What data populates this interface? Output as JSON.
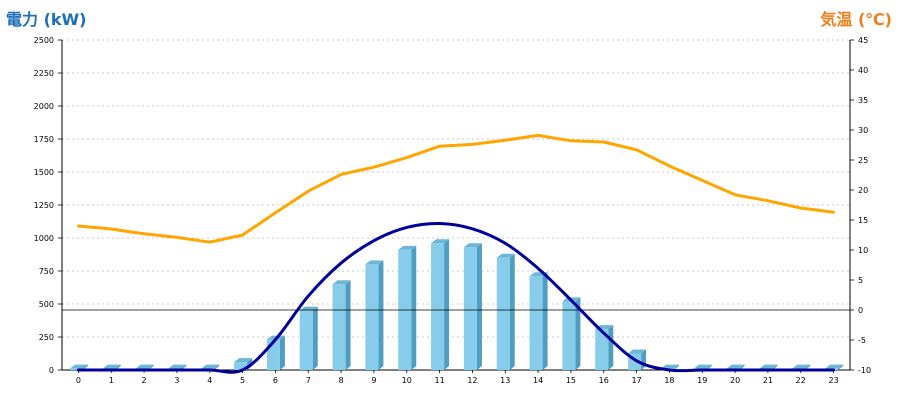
{
  "chart_data": {
    "type": "bar",
    "left_axis_title": "電力 (kW)",
    "right_axis_title": "気温 (℃)",
    "categories": [
      "0",
      "1",
      "2",
      "3",
      "4",
      "5",
      "6",
      "7",
      "8",
      "9",
      "10",
      "11",
      "12",
      "13",
      "14",
      "15",
      "16",
      "17",
      "18",
      "19",
      "20",
      "21",
      "22",
      "23"
    ],
    "left_ticks": [
      "0",
      "250",
      "500",
      "750",
      "1000",
      "1250",
      "1500",
      "1750",
      "2000",
      "2250",
      "2500"
    ],
    "right_ticks": [
      "-10",
      "-5",
      "0",
      "5",
      "10",
      "15",
      "20",
      "25",
      "30",
      "35",
      "40",
      "45"
    ],
    "ylim_left": [
      0,
      2500
    ],
    "ylim_right": [
      -10,
      45
    ],
    "grid": true,
    "series": [
      {
        "kind": "bar",
        "axis": "left",
        "color": "#87cceb",
        "values": [
          10,
          10,
          10,
          10,
          10,
          60,
          230,
          450,
          650,
          800,
          910,
          960,
          930,
          850,
          710,
          520,
          310,
          125,
          10,
          10,
          10,
          10,
          10,
          10
        ]
      },
      {
        "kind": "line",
        "axis": "left",
        "color": "#000099",
        "values": [
          0,
          0,
          0,
          0,
          0,
          0,
          230,
          560,
          810,
          980,
          1080,
          1110,
          1070,
          960,
          770,
          530,
          280,
          70,
          0,
          0,
          0,
          0,
          0,
          0
        ]
      },
      {
        "kind": "line",
        "axis": "right",
        "color": "#ffa500",
        "values": [
          14.0,
          13.5,
          12.7,
          12.1,
          11.3,
          12.5,
          16.2,
          19.8,
          22.6,
          23.8,
          25.4,
          27.3,
          27.6,
          28.3,
          29.1,
          28.2,
          28.0,
          26.7,
          24.0,
          21.6,
          19.2,
          18.2,
          17.0,
          16.3
        ]
      }
    ],
    "reference_line": {
      "axis": "right",
      "value": 0,
      "color": "#000000"
    }
  }
}
